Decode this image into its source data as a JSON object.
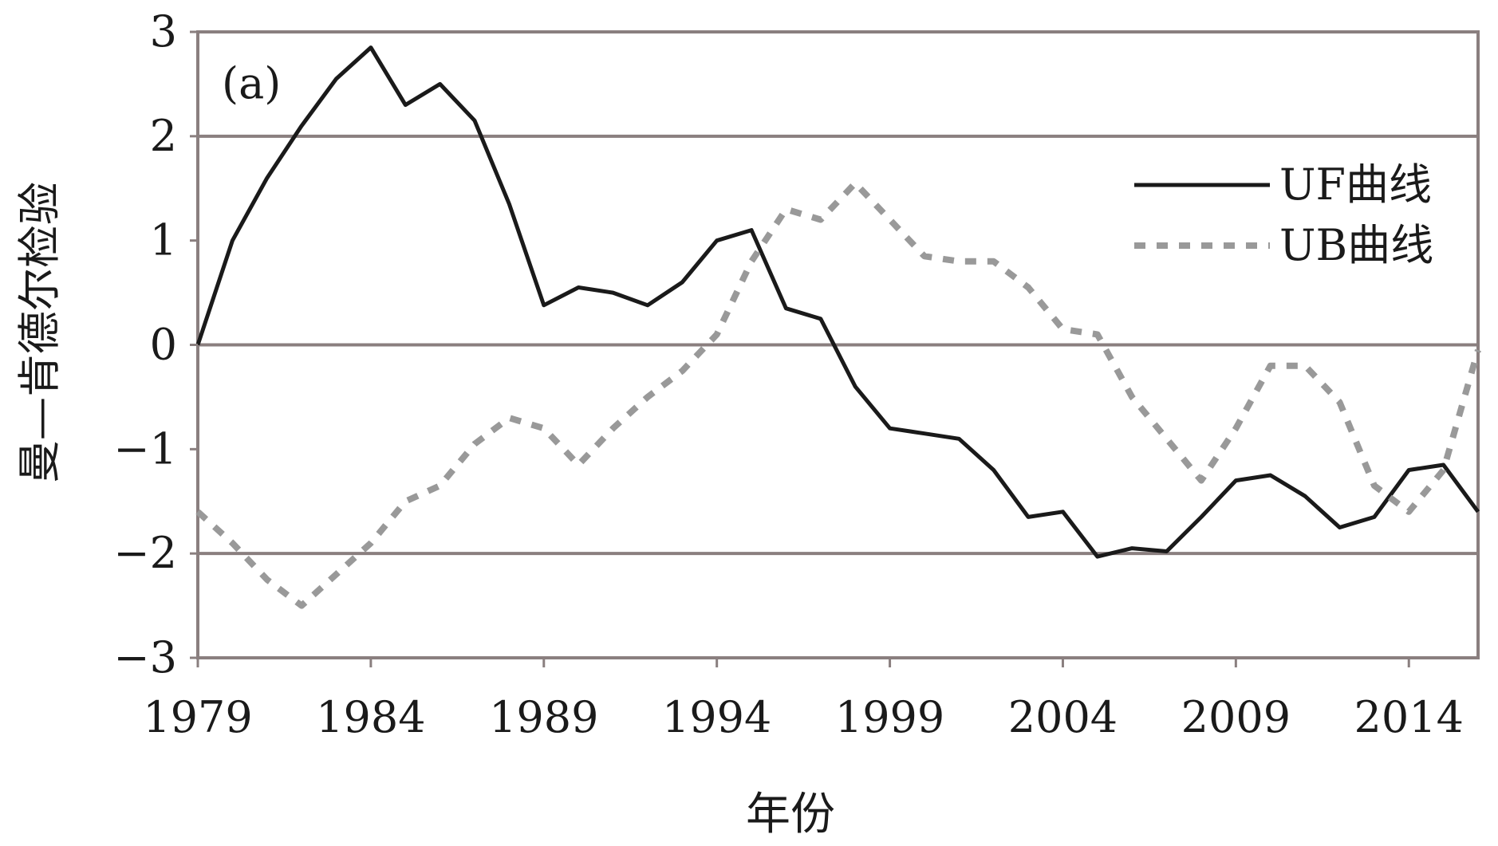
{
  "chart_data": {
    "type": "line",
    "panel_label": "(a)",
    "xlabel": "年份",
    "ylabel": "曼—肯德尔检验",
    "xlim": [
      1979,
      2016
    ],
    "ylim": [
      -3,
      3
    ],
    "x_ticks": [
      1979,
      1984,
      1989,
      1994,
      1999,
      2004,
      2009,
      2014
    ],
    "x_tick_labels": [
      "1979",
      "1984",
      "1989",
      "1994",
      "1999",
      "2004",
      "2009",
      "2014"
    ],
    "y_ticks": [
      3,
      2,
      1,
      0,
      -1,
      -2,
      -3
    ],
    "y_tick_labels": [
      "3",
      "2",
      "1",
      "0",
      "−1",
      "−2",
      "−3"
    ],
    "gridlines": [
      2,
      0,
      -2
    ],
    "legend_position": "right",
    "series": [
      {
        "name": "UF曲线",
        "style": "solid",
        "color": "#1a1a1a",
        "x": [
          1979,
          1980,
          1981,
          1982,
          1983,
          1984,
          1985,
          1986,
          1987,
          1988,
          1989,
          1990,
          1991,
          1992,
          1993,
          1994,
          1995,
          1996,
          1997,
          1998,
          1999,
          2000,
          2001,
          2002,
          2003,
          2004,
          2005,
          2006,
          2007,
          2008,
          2009,
          2010,
          2011,
          2012,
          2013,
          2014,
          2015,
          2016
        ],
        "y": [
          0.0,
          1.0,
          1.6,
          2.1,
          2.55,
          2.85,
          2.3,
          2.5,
          2.15,
          1.35,
          0.38,
          0.55,
          0.5,
          0.38,
          0.6,
          1.0,
          1.1,
          0.35,
          0.25,
          -0.4,
          -0.8,
          -0.85,
          -0.9,
          -1.2,
          -1.65,
          -1.6,
          -2.03,
          -1.95,
          -1.98,
          -1.65,
          -1.3,
          -1.25,
          -1.45,
          -1.75,
          -1.65,
          -1.2,
          -1.15,
          -1.6
        ]
      },
      {
        "name": "UB曲线",
        "style": "dashed",
        "color": "#999999",
        "x": [
          1979,
          1980,
          1981,
          1982,
          1983,
          1984,
          1985,
          1986,
          1987,
          1988,
          1989,
          1990,
          1991,
          1992,
          1993,
          1994,
          1995,
          1996,
          1997,
          1998,
          1999,
          2000,
          2001,
          2002,
          2003,
          2004,
          2005,
          2006,
          2007,
          2008,
          2009,
          2010,
          2011,
          2012,
          2013,
          2014,
          2015,
          2016
        ],
        "y": [
          -1.6,
          -1.9,
          -2.25,
          -2.5,
          -2.2,
          -1.9,
          -1.5,
          -1.35,
          -0.95,
          -0.7,
          -0.8,
          -1.15,
          -0.8,
          -0.5,
          -0.25,
          0.1,
          0.8,
          1.3,
          1.2,
          1.55,
          1.2,
          0.85,
          0.8,
          0.8,
          0.55,
          0.15,
          0.1,
          -0.5,
          -0.9,
          -1.3,
          -0.8,
          -0.2,
          -0.2,
          -0.55,
          -1.35,
          -1.6,
          -1.2,
          -0.05
        ]
      }
    ]
  }
}
